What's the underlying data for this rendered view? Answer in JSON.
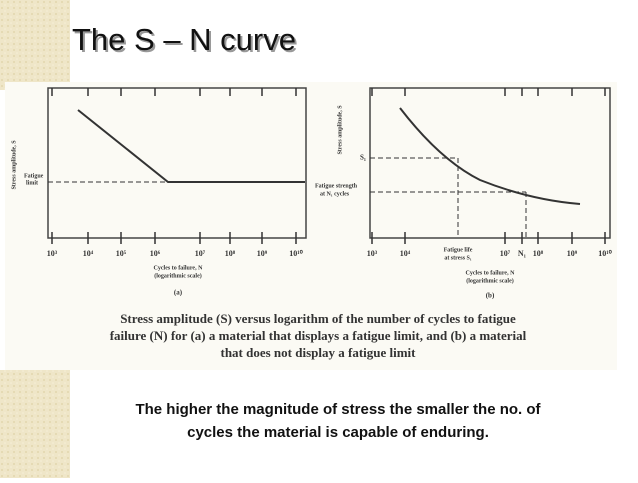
{
  "header": {
    "title": "The S – N curve"
  },
  "figure": {
    "panels": [
      {
        "y_label": "Stress amplitude, S",
        "limit_label": [
          "Fatigue",
          "limit"
        ],
        "x_ticks": [
          "10³",
          "10⁴",
          "10⁵",
          "10⁶",
          "10⁷",
          "10⁸",
          "10⁹",
          "10¹⁰"
        ],
        "x_label": [
          "Cycles to failure, N",
          "(logarithmic scale)"
        ],
        "panel_label": "(a)"
      },
      {
        "y_label": "Stress amplitude, S",
        "s1_label": "S₁",
        "strength_label": [
          "Fatigue strength",
          "at N₁ cycles"
        ],
        "x_ticks": [
          "10³",
          "10⁴",
          "10⁷",
          "N₁",
          "10⁸",
          "10⁹",
          "10¹⁰"
        ],
        "life_label": [
          "Fatigue life",
          "at stress S₁"
        ],
        "x_label": [
          "Cycles to failure, N",
          "(logarithmic scale)"
        ],
        "panel_label": "(b)"
      }
    ],
    "caption": [
      "Stress amplitude (S) versus logarithm of the number of cycles to fatigue",
      "failure (N) for (a) a material that displays a fatigue limit, and (b) a material",
      "that does not display a fatigue limit"
    ]
  },
  "body": {
    "lines": [
      "The higher the magnitude of stress the smaller the no. of",
      "cycles the material is capable of enduring."
    ]
  }
}
